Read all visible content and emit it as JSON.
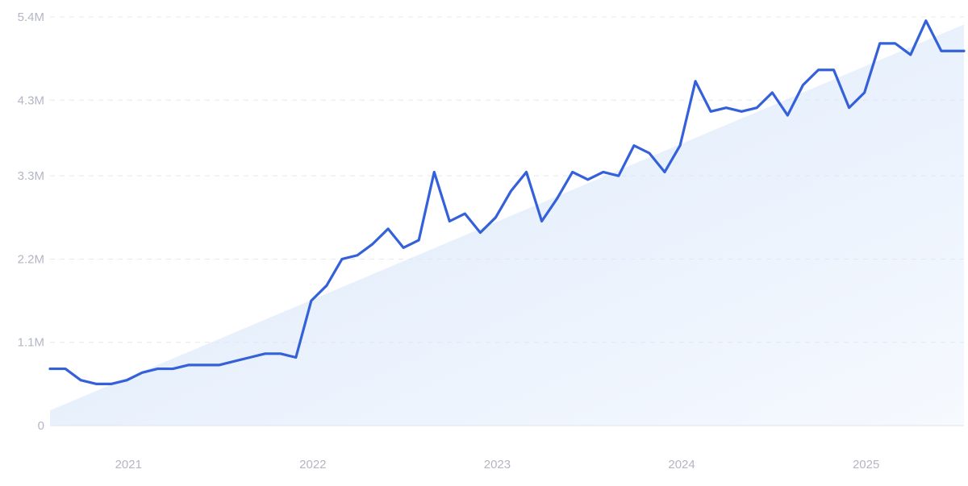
{
  "chart_data": {
    "type": "line",
    "title": "",
    "xlabel": "",
    "ylabel": "",
    "x_range": [
      "2020-08",
      "2025-06"
    ],
    "ylim": [
      0,
      5400000
    ],
    "y_ticks": [
      0,
      1100000,
      2200000,
      3300000,
      4300000,
      5400000
    ],
    "y_tick_labels": [
      "0",
      "1.1M",
      "2.2M",
      "3.3M",
      "4.3M",
      "5.4M"
    ],
    "x_ticks": [
      "2021-01",
      "2022-01",
      "2023-01",
      "2024-01",
      "2025-01"
    ],
    "x_tick_labels": [
      "2021",
      "2022",
      "2023",
      "2024",
      "2025"
    ],
    "grid": true,
    "legend": "none",
    "colors": {
      "line": "#3461d9",
      "trend_fill": "#dbe8fb",
      "grid": "#e6e8ee",
      "tick_text": "#b3b6c4"
    },
    "series": [
      {
        "x": [
          "2020-08",
          "2020-09",
          "2020-10",
          "2020-11",
          "2020-12",
          "2021-01",
          "2021-02",
          "2021-03",
          "2021-04",
          "2021-05",
          "2021-06",
          "2021-07",
          "2021-08",
          "2021-09",
          "2021-10",
          "2021-11",
          "2021-12",
          "2022-01",
          "2022-02",
          "2022-03",
          "2022-04",
          "2022-05",
          "2022-06",
          "2022-07",
          "2022-08",
          "2022-09",
          "2022-10",
          "2022-11",
          "2022-12",
          "2023-01",
          "2023-02",
          "2023-03",
          "2023-04",
          "2023-05",
          "2023-06",
          "2023-07",
          "2023-08",
          "2023-09",
          "2023-10",
          "2023-11",
          "2023-12",
          "2024-01",
          "2024-02",
          "2024-03",
          "2024-04",
          "2024-05",
          "2024-06",
          "2024-07",
          "2024-08",
          "2024-09",
          "2024-10",
          "2024-11",
          "2024-12",
          "2025-01",
          "2025-02",
          "2025-03",
          "2025-04",
          "2025-05",
          "2025-06",
          "2025-07"
        ],
        "y": [
          750000,
          750000,
          600000,
          550000,
          550000,
          600000,
          700000,
          750000,
          750000,
          800000,
          800000,
          800000,
          850000,
          900000,
          950000,
          950000,
          900000,
          1650000,
          1850000,
          2200000,
          2250000,
          2400000,
          2600000,
          2350000,
          2450000,
          3350000,
          2700000,
          2800000,
          2550000,
          2750000,
          3100000,
          3350000,
          2700000,
          3000000,
          3350000,
          3250000,
          3350000,
          3300000,
          3700000,
          3600000,
          3350000,
          3700000,
          4550000,
          4150000,
          4200000,
          4150000,
          4200000,
          4400000,
          4100000,
          4500000,
          4700000,
          4700000,
          4200000,
          4400000,
          5050000,
          5050000,
          4900000,
          5350000,
          4950000,
          4950000
        ]
      }
    ],
    "trend": {
      "type": "linear",
      "start": 200000,
      "end": 5300000
    }
  }
}
